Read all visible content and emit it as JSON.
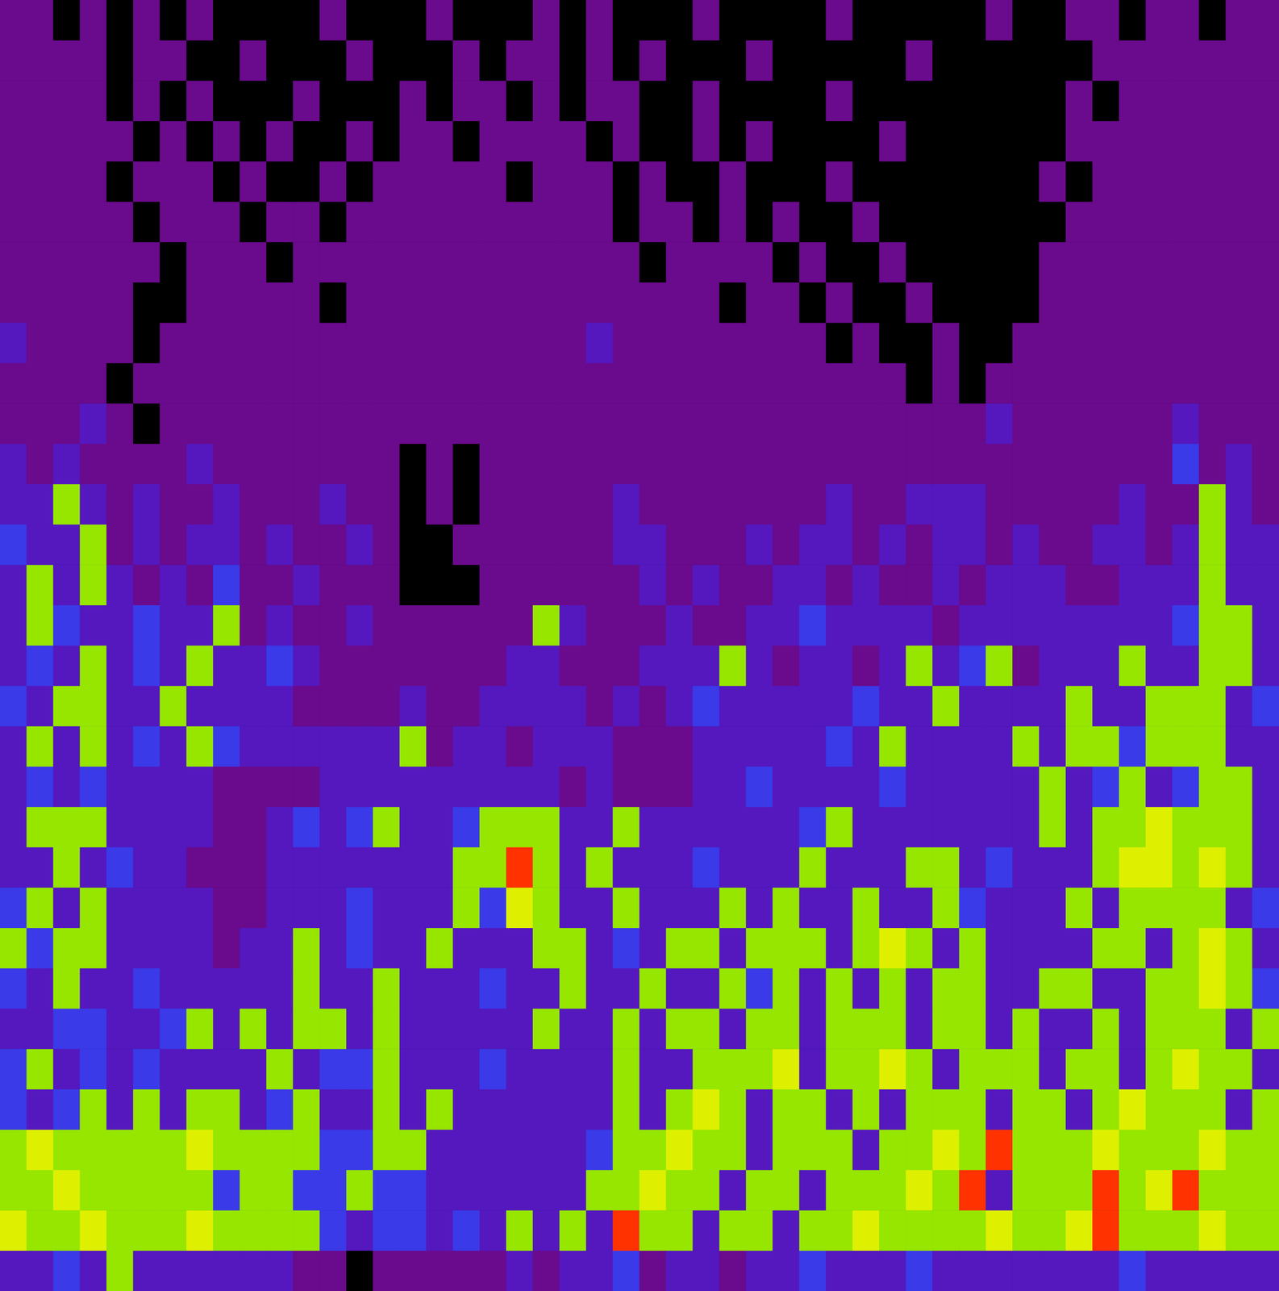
{
  "chart_data": {
    "type": "heatmap",
    "tick_labels": false,
    "zlim": [
      0,
      6
    ],
    "cells": [
      [
        1,
        1,
        0,
        1,
        0,
        1,
        0,
        1,
        0,
        0,
        0,
        0,
        1,
        0,
        0,
        0,
        1,
        0,
        0,
        0,
        1,
        0,
        1,
        0,
        0,
        0,
        1,
        0,
        0,
        0,
        0,
        1,
        0,
        0,
        0,
        0,
        0,
        1,
        0,
        0,
        1,
        1,
        0,
        1,
        1,
        0,
        1,
        1
      ],
      [
        1,
        1,
        1,
        1,
        0,
        1,
        1,
        0,
        0,
        1,
        0,
        0,
        0,
        1,
        0,
        0,
        0,
        1,
        0,
        1,
        1,
        0,
        1,
        0,
        1,
        0,
        0,
        0,
        1,
        0,
        0,
        0,
        0,
        0,
        1,
        0,
        0,
        0,
        0,
        0,
        0,
        1,
        1,
        1,
        1,
        1,
        1,
        1
      ],
      [
        1,
        1,
        1,
        1,
        0,
        1,
        0,
        1,
        0,
        0,
        0,
        1,
        0,
        0,
        0,
        1,
        0,
        1,
        1,
        0,
        1,
        0,
        1,
        1,
        0,
        0,
        1,
        0,
        0,
        0,
        0,
        1,
        0,
        0,
        0,
        0,
        0,
        0,
        0,
        0,
        1,
        0,
        1,
        1,
        1,
        1,
        1,
        1
      ],
      [
        1,
        1,
        1,
        1,
        1,
        0,
        1,
        0,
        1,
        0,
        1,
        0,
        0,
        1,
        0,
        1,
        1,
        0,
        1,
        1,
        1,
        1,
        0,
        1,
        0,
        0,
        1,
        0,
        1,
        0,
        0,
        0,
        0,
        1,
        0,
        0,
        0,
        0,
        0,
        0,
        1,
        1,
        1,
        1,
        1,
        1,
        1,
        1
      ],
      [
        1,
        1,
        1,
        1,
        0,
        1,
        1,
        1,
        0,
        1,
        0,
        0,
        1,
        0,
        1,
        1,
        1,
        1,
        1,
        0,
        1,
        1,
        1,
        0,
        1,
        0,
        0,
        1,
        0,
        0,
        0,
        1,
        0,
        0,
        0,
        0,
        0,
        0,
        0,
        1,
        0,
        1,
        1,
        1,
        1,
        1,
        1,
        1
      ],
      [
        1,
        1,
        1,
        1,
        1,
        0,
        1,
        1,
        1,
        0,
        1,
        1,
        0,
        1,
        1,
        1,
        1,
        1,
        1,
        1,
        1,
        1,
        1,
        0,
        1,
        1,
        0,
        1,
        0,
        1,
        0,
        0,
        1,
        0,
        0,
        0,
        0,
        0,
        0,
        0,
        1,
        1,
        1,
        1,
        1,
        1,
        1,
        1
      ],
      [
        1,
        1,
        1,
        1,
        1,
        1,
        0,
        1,
        1,
        1,
        0,
        1,
        1,
        1,
        1,
        1,
        1,
        1,
        1,
        1,
        1,
        1,
        1,
        1,
        0,
        1,
        1,
        1,
        1,
        0,
        1,
        0,
        0,
        1,
        0,
        0,
        0,
        0,
        0,
        1,
        1,
        1,
        1,
        1,
        1,
        1,
        1,
        1
      ],
      [
        1,
        1,
        1,
        1,
        1,
        0,
        0,
        1,
        1,
        1,
        1,
        1,
        0,
        1,
        1,
        1,
        1,
        1,
        1,
        1,
        1,
        1,
        1,
        1,
        1,
        1,
        1,
        0,
        1,
        1,
        0,
        1,
        0,
        0,
        1,
        0,
        0,
        0,
        0,
        1,
        1,
        1,
        1,
        1,
        1,
        1,
        1,
        1
      ],
      [
        2,
        1,
        1,
        1,
        1,
        0,
        1,
        1,
        1,
        1,
        1,
        1,
        1,
        1,
        1,
        1,
        1,
        1,
        1,
        1,
        1,
        1,
        2,
        1,
        1,
        1,
        1,
        1,
        1,
        1,
        1,
        0,
        1,
        0,
        0,
        1,
        0,
        0,
        1,
        1,
        1,
        1,
        1,
        1,
        1,
        1,
        1,
        1
      ],
      [
        1,
        1,
        1,
        1,
        0,
        1,
        1,
        1,
        1,
        1,
        1,
        1,
        1,
        1,
        1,
        1,
        1,
        1,
        1,
        1,
        1,
        1,
        1,
        1,
        1,
        1,
        1,
        1,
        1,
        1,
        1,
        1,
        1,
        1,
        0,
        1,
        0,
        1,
        1,
        1,
        1,
        1,
        1,
        1,
        1,
        1,
        1,
        1
      ],
      [
        1,
        1,
        1,
        2,
        1,
        0,
        1,
        1,
        1,
        1,
        1,
        1,
        1,
        1,
        1,
        1,
        1,
        1,
        1,
        1,
        1,
        1,
        1,
        1,
        1,
        1,
        1,
        1,
        1,
        1,
        1,
        1,
        1,
        1,
        1,
        1,
        1,
        2,
        1,
        1,
        1,
        1,
        1,
        1,
        2,
        1,
        1,
        1
      ],
      [
        2,
        1,
        2,
        1,
        1,
        1,
        1,
        2,
        1,
        1,
        1,
        1,
        1,
        1,
        1,
        0,
        1,
        0,
        1,
        1,
        1,
        1,
        1,
        1,
        1,
        1,
        1,
        1,
        1,
        1,
        1,
        1,
        1,
        1,
        1,
        1,
        1,
        1,
        1,
        1,
        1,
        1,
        1,
        1,
        3,
        1,
        2,
        1
      ],
      [
        2,
        2,
        4,
        2,
        1,
        2,
        1,
        1,
        2,
        1,
        1,
        1,
        2,
        1,
        1,
        0,
        1,
        0,
        1,
        1,
        1,
        1,
        1,
        2,
        1,
        1,
        1,
        1,
        1,
        1,
        1,
        2,
        1,
        1,
        2,
        2,
        2,
        1,
        1,
        1,
        1,
        1,
        2,
        1,
        1,
        4,
        2,
        1
      ],
      [
        3,
        2,
        2,
        4,
        1,
        2,
        1,
        2,
        2,
        1,
        2,
        1,
        1,
        2,
        1,
        0,
        0,
        1,
        1,
        1,
        1,
        1,
        1,
        2,
        2,
        1,
        1,
        1,
        2,
        1,
        2,
        2,
        1,
        2,
        1,
        2,
        2,
        1,
        2,
        1,
        1,
        2,
        2,
        1,
        2,
        4,
        2,
        2
      ],
      [
        2,
        4,
        2,
        4,
        2,
        1,
        2,
        1,
        3,
        1,
        1,
        2,
        1,
        1,
        1,
        0,
        0,
        0,
        1,
        1,
        1,
        1,
        1,
        1,
        2,
        1,
        2,
        1,
        1,
        2,
        2,
        1,
        2,
        1,
        1,
        2,
        1,
        2,
        2,
        2,
        1,
        1,
        2,
        2,
        2,
        4,
        2,
        2
      ],
      [
        2,
        4,
        3,
        2,
        2,
        3,
        2,
        2,
        4,
        1,
        2,
        1,
        1,
        2,
        1,
        1,
        1,
        1,
        1,
        1,
        4,
        2,
        1,
        1,
        1,
        2,
        1,
        1,
        2,
        2,
        3,
        2,
        2,
        2,
        2,
        1,
        2,
        2,
        2,
        2,
        2,
        2,
        2,
        2,
        3,
        4,
        4,
        2
      ],
      [
        2,
        3,
        2,
        4,
        2,
        3,
        2,
        4,
        2,
        2,
        3,
        2,
        1,
        1,
        1,
        1,
        1,
        1,
        1,
        2,
        2,
        1,
        1,
        1,
        2,
        2,
        2,
        4,
        2,
        1,
        2,
        2,
        1,
        2,
        4,
        2,
        3,
        4,
        1,
        2,
        2,
        2,
        4,
        2,
        2,
        4,
        4,
        2
      ],
      [
        3,
        2,
        4,
        4,
        2,
        2,
        4,
        2,
        2,
        2,
        2,
        1,
        1,
        1,
        1,
        2,
        1,
        1,
        2,
        2,
        2,
        2,
        1,
        2,
        1,
        2,
        3,
        2,
        2,
        2,
        2,
        2,
        3,
        2,
        2,
        4,
        2,
        2,
        2,
        2,
        4,
        2,
        2,
        4,
        4,
        4,
        2,
        3
      ],
      [
        2,
        4,
        2,
        4,
        2,
        3,
        2,
        4,
        3,
        2,
        2,
        2,
        2,
        2,
        2,
        4,
        1,
        2,
        2,
        1,
        2,
        2,
        2,
        1,
        1,
        1,
        2,
        2,
        2,
        2,
        2,
        3,
        2,
        4,
        2,
        2,
        2,
        2,
        4,
        2,
        4,
        4,
        3,
        4,
        4,
        4,
        2,
        2
      ],
      [
        2,
        3,
        2,
        3,
        2,
        2,
        2,
        2,
        1,
        1,
        1,
        1,
        2,
        2,
        2,
        2,
        2,
        2,
        2,
        2,
        2,
        1,
        2,
        1,
        1,
        1,
        2,
        2,
        3,
        2,
        2,
        2,
        2,
        3,
        2,
        2,
        2,
        2,
        2,
        4,
        2,
        3,
        4,
        2,
        3,
        4,
        4,
        2
      ],
      [
        2,
        4,
        4,
        4,
        2,
        2,
        2,
        2,
        1,
        1,
        2,
        3,
        2,
        3,
        4,
        2,
        2,
        3,
        4,
        4,
        4,
        2,
        2,
        4,
        2,
        2,
        2,
        2,
        2,
        2,
        3,
        4,
        2,
        2,
        2,
        2,
        2,
        2,
        2,
        4,
        2,
        4,
        4,
        5,
        4,
        4,
        4,
        2
      ],
      [
        2,
        2,
        4,
        2,
        3,
        2,
        2,
        1,
        1,
        1,
        2,
        2,
        2,
        2,
        2,
        2,
        2,
        4,
        4,
        6,
        4,
        2,
        4,
        2,
        2,
        2,
        3,
        2,
        2,
        2,
        4,
        2,
        2,
        2,
        4,
        4,
        2,
        3,
        2,
        2,
        2,
        4,
        5,
        5,
        4,
        5,
        4,
        2
      ],
      [
        3,
        4,
        2,
        4,
        2,
        2,
        2,
        2,
        1,
        1,
        2,
        2,
        2,
        3,
        2,
        2,
        2,
        4,
        3,
        5,
        4,
        2,
        2,
        4,
        2,
        2,
        2,
        4,
        2,
        4,
        2,
        2,
        4,
        2,
        2,
        4,
        3,
        2,
        2,
        2,
        4,
        2,
        4,
        4,
        4,
        4,
        2,
        3
      ],
      [
        4,
        3,
        4,
        4,
        2,
        2,
        2,
        2,
        1,
        2,
        2,
        4,
        2,
        3,
        2,
        2,
        4,
        2,
        2,
        2,
        4,
        4,
        2,
        3,
        2,
        4,
        4,
        2,
        4,
        4,
        4,
        2,
        4,
        5,
        4,
        2,
        4,
        2,
        2,
        2,
        2,
        4,
        4,
        2,
        4,
        5,
        4,
        2
      ],
      [
        3,
        2,
        4,
        2,
        2,
        3,
        2,
        2,
        2,
        2,
        2,
        4,
        2,
        2,
        4,
        2,
        2,
        2,
        3,
        2,
        2,
        4,
        2,
        2,
        4,
        2,
        2,
        4,
        3,
        4,
        2,
        4,
        2,
        4,
        2,
        4,
        4,
        2,
        2,
        4,
        4,
        2,
        2,
        4,
        4,
        5,
        4,
        3
      ],
      [
        2,
        2,
        3,
        3,
        2,
        2,
        3,
        4,
        2,
        4,
        2,
        4,
        4,
        2,
        4,
        2,
        2,
        2,
        2,
        2,
        4,
        2,
        2,
        4,
        2,
        4,
        4,
        2,
        4,
        4,
        2,
        4,
        4,
        4,
        2,
        4,
        4,
        2,
        4,
        2,
        2,
        4,
        2,
        4,
        4,
        4,
        2,
        4
      ],
      [
        3,
        4,
        2,
        3,
        2,
        3,
        2,
        2,
        2,
        2,
        4,
        2,
        3,
        3,
        4,
        2,
        2,
        2,
        3,
        2,
        2,
        2,
        2,
        4,
        2,
        2,
        4,
        4,
        4,
        5,
        2,
        4,
        4,
        5,
        4,
        2,
        4,
        4,
        4,
        2,
        4,
        4,
        2,
        4,
        5,
        4,
        4,
        2
      ],
      [
        3,
        2,
        3,
        4,
        2,
        4,
        2,
        4,
        4,
        2,
        3,
        4,
        2,
        2,
        4,
        2,
        4,
        2,
        2,
        2,
        2,
        2,
        2,
        4,
        2,
        4,
        5,
        4,
        2,
        4,
        4,
        2,
        4,
        2,
        4,
        4,
        4,
        2,
        4,
        4,
        2,
        4,
        5,
        4,
        4,
        4,
        2,
        4
      ],
      [
        4,
        5,
        4,
        4,
        4,
        4,
        4,
        5,
        4,
        4,
        4,
        4,
        3,
        3,
        4,
        4,
        2,
        2,
        2,
        2,
        2,
        2,
        3,
        4,
        4,
        5,
        4,
        4,
        2,
        4,
        4,
        4,
        2,
        4,
        4,
        5,
        4,
        6,
        4,
        4,
        4,
        5,
        4,
        4,
        4,
        5,
        4,
        4
      ],
      [
        4,
        4,
        5,
        4,
        4,
        4,
        4,
        4,
        3,
        4,
        4,
        3,
        3,
        4,
        3,
        3,
        2,
        2,
        2,
        2,
        2,
        2,
        4,
        4,
        5,
        4,
        4,
        2,
        4,
        4,
        2,
        4,
        4,
        4,
        5,
        4,
        6,
        2,
        4,
        4,
        4,
        6,
        4,
        5,
        6,
        4,
        4,
        4
      ],
      [
        5,
        4,
        4,
        5,
        4,
        4,
        4,
        5,
        4,
        4,
        4,
        4,
        3,
        2,
        3,
        3,
        2,
        3,
        2,
        4,
        2,
        4,
        2,
        6,
        4,
        4,
        2,
        4,
        4,
        2,
        4,
        4,
        5,
        4,
        4,
        4,
        4,
        5,
        4,
        4,
        5,
        6,
        4,
        4,
        4,
        5,
        4,
        4
      ],
      [
        2,
        2,
        3,
        2,
        4,
        2,
        2,
        2,
        2,
        2,
        2,
        1,
        1,
        0,
        1,
        1,
        1,
        1,
        1,
        2,
        1,
        2,
        2,
        3,
        1,
        2,
        2,
        1,
        2,
        2,
        3,
        2,
        2,
        2,
        3,
        2,
        2,
        2,
        2,
        2,
        2,
        2,
        3,
        2,
        2,
        2,
        2,
        2
      ]
    ]
  }
}
